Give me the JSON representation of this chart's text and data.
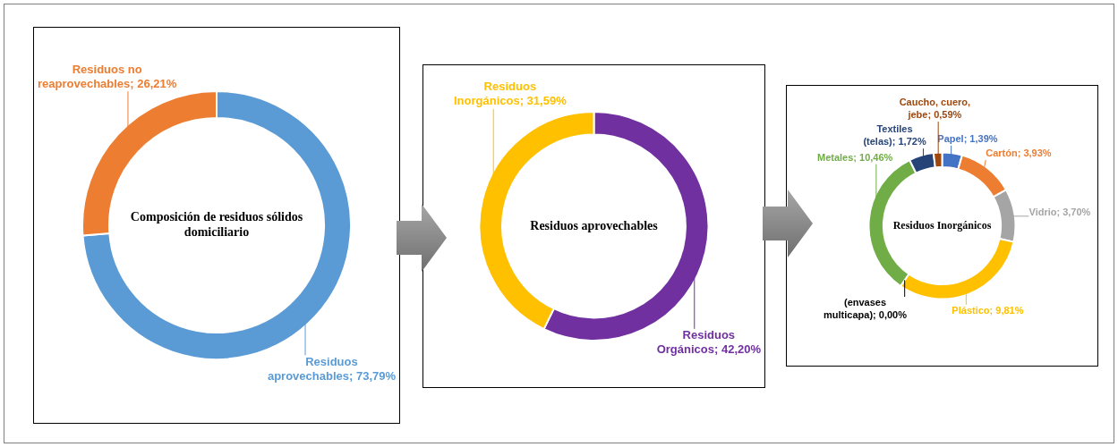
{
  "chart_data": [
    {
      "type": "donut",
      "title": "Composición de residuos sólidos domiciliario",
      "categories": [
        "Residuos aprovechables",
        "Residuos no reaprovechables"
      ],
      "values": [
        73.79,
        26.21
      ],
      "colors": [
        "#5b9bd5",
        "#ed7d31"
      ],
      "value_labels": [
        "73,79%",
        "26,21%"
      ]
    },
    {
      "type": "donut",
      "title": "Residuos aprovechables",
      "categories": [
        "Residuos Orgánicos",
        "Residuos Inorgánicos"
      ],
      "values": [
        42.2,
        31.59
      ],
      "colors": [
        "#7030a0",
        "#ffc000"
      ],
      "value_labels": [
        "42,20%",
        "31,59%"
      ]
    },
    {
      "type": "donut",
      "title": "Residuos Inorgánicos",
      "categories": [
        "Papel",
        "Cartón",
        "Vidrio",
        "Plástico",
        "(envases multicapa)",
        "Metales",
        "Textiles (telas)",
        "Caucho, cuero, jebe"
      ],
      "values": [
        1.39,
        3.93,
        3.7,
        9.81,
        0,
        10.46,
        1.72,
        0.59
      ],
      "colors": [
        "#4472c4",
        "#ed7d31",
        "#a5a5a5",
        "#ffc000",
        "#000000",
        "#70ad47",
        "#264478",
        "#9e480e"
      ],
      "value_labels": [
        "1,39%",
        "3,93%",
        "3,70%",
        "9,81%",
        "0,00%",
        "10,46%",
        "1,72%",
        "0,59%"
      ]
    }
  ]
}
